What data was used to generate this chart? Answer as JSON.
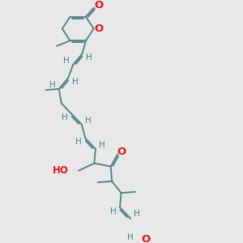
{
  "bg_color": "#e8e8e8",
  "bond_color": "#4a8080",
  "O_color": "#ee1111",
  "lw": 1.3,
  "dbo": 0.07,
  "figsize": [
    3.0,
    3.0
  ],
  "dpi": 100,
  "xlim": [
    0,
    10
  ],
  "ylim": [
    0,
    10
  ]
}
